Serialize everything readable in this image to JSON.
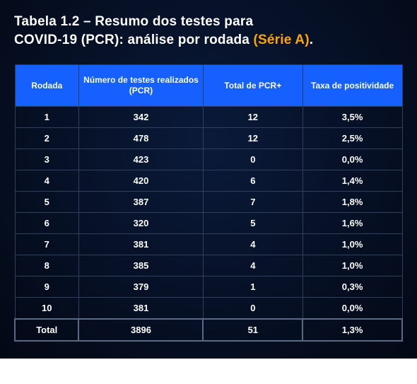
{
  "title": {
    "line1": "Tabela 1.2 – Resumo dos testes para",
    "line2_prefix": "COVID-19 (PCR): análise por rodada ",
    "series": "(Série A)",
    "suffix": "."
  },
  "colors": {
    "header_bg": "#1560ff",
    "accent": "#ffa500",
    "text": "#ffffff",
    "row_border": "#30405a"
  },
  "table": {
    "type": "table",
    "columns": [
      "Rodada",
      "Número de testes realizados (PCR)",
      "Total de PCR+",
      "Taxa de positividade"
    ],
    "rows": [
      [
        "1",
        "342",
        "12",
        "3,5%"
      ],
      [
        "2",
        "478",
        "12",
        "2,5%"
      ],
      [
        "3",
        "423",
        "0",
        "0,0%"
      ],
      [
        "4",
        "420",
        "6",
        "1,4%"
      ],
      [
        "5",
        "387",
        "7",
        "1,8%"
      ],
      [
        "6",
        "320",
        "5",
        "1,6%"
      ],
      [
        "7",
        "381",
        "4",
        "1,0%"
      ],
      [
        "8",
        "385",
        "4",
        "1,0%"
      ],
      [
        "9",
        "379",
        "1",
        "0,3%"
      ],
      [
        "10",
        "381",
        "0",
        "0,0%"
      ]
    ],
    "total_row": [
      "Total",
      "3896",
      "51",
      "1,3%"
    ]
  }
}
